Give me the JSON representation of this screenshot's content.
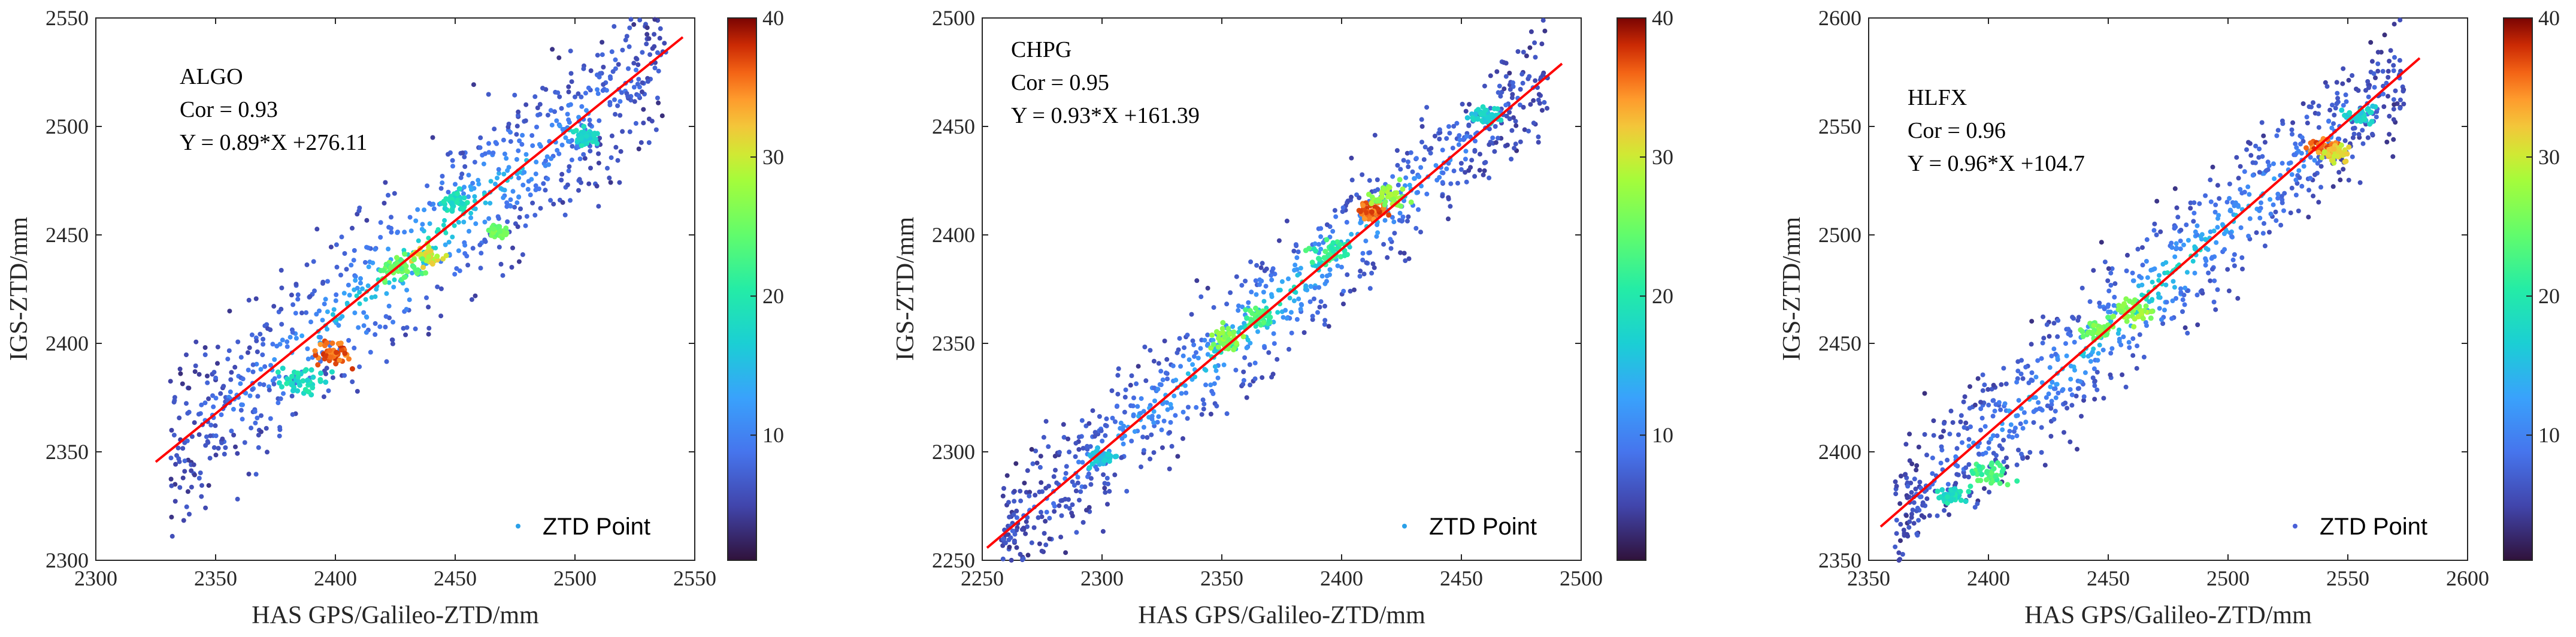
{
  "chart_data": [
    {
      "type": "scatter",
      "station": "ALGO",
      "annotation": {
        "cor": "Cor = 0.93",
        "fit": "Y = 0.89*X +276.11"
      },
      "fit": {
        "slope": 0.89,
        "intercept": 276.11
      },
      "xlabel": "HAS GPS/Galileo-ZTD/mm",
      "ylabel": "IGS-ZTD/mm",
      "xlim": [
        2300,
        2550
      ],
      "ylim": [
        2300,
        2550
      ],
      "xticks": [
        2300,
        2350,
        2400,
        2450,
        2500,
        2550
      ],
      "yticks": [
        2300,
        2350,
        2400,
        2450,
        2500,
        2550
      ],
      "xlabels": [
        "2300",
        "2350",
        "2400",
        "2450",
        "2500",
        "2550"
      ],
      "ylabels": [
        "2300",
        "2350",
        "2400",
        "2450",
        "2500",
        "2550"
      ],
      "fit_x_range": [
        2325,
        2545
      ],
      "spread": 19,
      "clusters": [
        [
          2400,
          2395,
          38,
          4
        ],
        [
          2438,
          2440,
          32,
          3
        ],
        [
          2428,
          2435,
          26,
          4
        ],
        [
          2468,
          2452,
          27,
          2
        ],
        [
          2505,
          2495,
          19,
          3
        ],
        [
          2385,
          2382,
          20,
          5
        ],
        [
          2450,
          2465,
          20,
          3
        ]
      ],
      "legend": "ZTD Point",
      "colorbar": {
        "min": 1,
        "max": 40,
        "ticks": [
          10,
          20,
          30,
          40
        ],
        "labels": [
          "10",
          "20",
          "30",
          "40"
        ]
      }
    },
    {
      "type": "scatter",
      "station": "CHPG",
      "annotation": {
        "cor": "Cor = 0.95",
        "fit": "Y = 0.93*X +161.39"
      },
      "fit": {
        "slope": 0.93,
        "intercept": 161.39
      },
      "xlabel": "HAS GPS/Galileo-ZTD/mm",
      "ylabel": "IGS-ZTD/mm",
      "xlim": [
        2250,
        2500
      ],
      "ylim": [
        2250,
        2500
      ],
      "xticks": [
        2250,
        2300,
        2350,
        2400,
        2450,
        2500
      ],
      "yticks": [
        2250,
        2300,
        2350,
        2400,
        2450,
        2500
      ],
      "xlabels": [
        "2250",
        "2300",
        "2350",
        "2400",
        "2450",
        "2500"
      ],
      "ylabels": [
        "2250",
        "2300",
        "2350",
        "2400",
        "2450",
        "2500"
      ],
      "fit_x_range": [
        2252,
        2492
      ],
      "spread": 14,
      "clusters": [
        [
          2413,
          2411,
          38,
          3
        ],
        [
          2420,
          2418,
          29,
          4
        ],
        [
          2352,
          2352,
          28,
          4
        ],
        [
          2365,
          2362,
          24,
          3
        ],
        [
          2395,
          2392,
          23,
          4
        ],
        [
          2460,
          2455,
          18,
          3
        ],
        [
          2300,
          2298,
          17,
          3
        ]
      ],
      "legend": "ZTD Point",
      "colorbar": {
        "min": 1,
        "max": 40,
        "ticks": [
          10,
          20,
          30,
          40
        ],
        "labels": [
          "10",
          "20",
          "30",
          "40"
        ]
      }
    },
    {
      "type": "scatter",
      "station": "HLFX",
      "annotation": {
        "cor": "Cor = 0.96",
        "fit": "Y = 0.96*X +104.7"
      },
      "fit": {
        "slope": 0.96,
        "intercept": 104.7
      },
      "xlabel": "HAS GPS/Galileo-ZTD/mm",
      "ylabel": "IGS-ZTD/mm",
      "xlim": [
        2350,
        2600
      ],
      "ylim": [
        2350,
        2600
      ],
      "xticks": [
        2350,
        2400,
        2450,
        2500,
        2550,
        2600
      ],
      "yticks": [
        2350,
        2400,
        2450,
        2500,
        2550,
        2600
      ],
      "xlabels": [
        "2350",
        "2400",
        "2450",
        "2500",
        "2550",
        "2600"
      ],
      "ylabels": [
        "2350",
        "2400",
        "2450",
        "2500",
        "2550",
        "2600"
      ],
      "fit_x_range": [
        2355,
        2580
      ],
      "spread": 15,
      "clusters": [
        [
          2540,
          2540,
          38,
          3
        ],
        [
          2545,
          2538,
          33,
          3
        ],
        [
          2460,
          2465,
          29,
          4
        ],
        [
          2445,
          2456,
          27,
          3
        ],
        [
          2400,
          2390,
          24,
          4
        ],
        [
          2385,
          2380,
          20,
          3
        ],
        [
          2555,
          2555,
          18,
          3
        ]
      ],
      "legend": "ZTD Point",
      "colorbar": {
        "min": 1,
        "max": 40,
        "ticks": [
          10,
          20,
          30,
          40
        ],
        "labels": [
          "10",
          "20",
          "30",
          "40"
        ]
      }
    }
  ]
}
